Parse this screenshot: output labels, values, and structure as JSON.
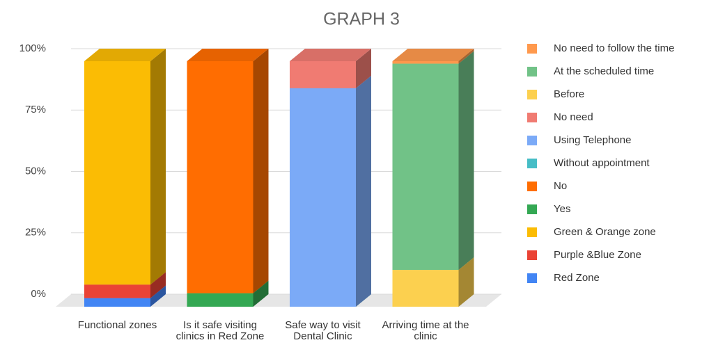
{
  "chart_data": {
    "type": "bar3d_stacked",
    "title": "GRAPH 3",
    "categories": [
      "Functional zones",
      "Is it safe visiting clinics in Red Zone",
      "Safe way to visit Dental Clinic",
      "Arriving time at the clinic"
    ],
    "ylim": [
      0,
      100
    ],
    "yticks": [
      {
        "value": 0,
        "label": "0%"
      },
      {
        "value": 25,
        "label": "25%"
      },
      {
        "value": 50,
        "label": "50%"
      },
      {
        "value": 75,
        "label": "75%"
      },
      {
        "value": 100,
        "label": "100%"
      }
    ],
    "grid": true,
    "legend": "right",
    "series": [
      {
        "name": "Red Zone",
        "color": "#4285f4",
        "values": [
          3.5,
          null,
          null,
          null
        ]
      },
      {
        "name": "Purple &Blue Zone",
        "color": "#ea4335",
        "values": [
          5.5,
          null,
          null,
          null
        ]
      },
      {
        "name": "Green & Orange zone",
        "color": "#fbbc04",
        "values": [
          91,
          null,
          null,
          null
        ]
      },
      {
        "name": "Yes",
        "color": "#34a853",
        "values": [
          null,
          5.5,
          null,
          null
        ]
      },
      {
        "name": "No",
        "color": "#ff6d01",
        "values": [
          null,
          94.5,
          null,
          null
        ]
      },
      {
        "name": "Without appointment",
        "color": "#46bdc6",
        "values": [
          null,
          null,
          0,
          null
        ]
      },
      {
        "name": "Using Telephone",
        "color": "#7baaf7",
        "values": [
          null,
          null,
          89,
          null
        ]
      },
      {
        "name": "No need",
        "color": "#f07b72",
        "values": [
          null,
          null,
          11,
          null
        ]
      },
      {
        "name": "Before",
        "color": "#fcd04f",
        "values": [
          null,
          null,
          null,
          15
        ]
      },
      {
        "name": "At the scheduled time",
        "color": "#71c287",
        "values": [
          null,
          null,
          null,
          84
        ]
      },
      {
        "name": "No need to follow the time",
        "color": "#ff994d",
        "values": [
          null,
          null,
          null,
          1
        ]
      }
    ]
  }
}
